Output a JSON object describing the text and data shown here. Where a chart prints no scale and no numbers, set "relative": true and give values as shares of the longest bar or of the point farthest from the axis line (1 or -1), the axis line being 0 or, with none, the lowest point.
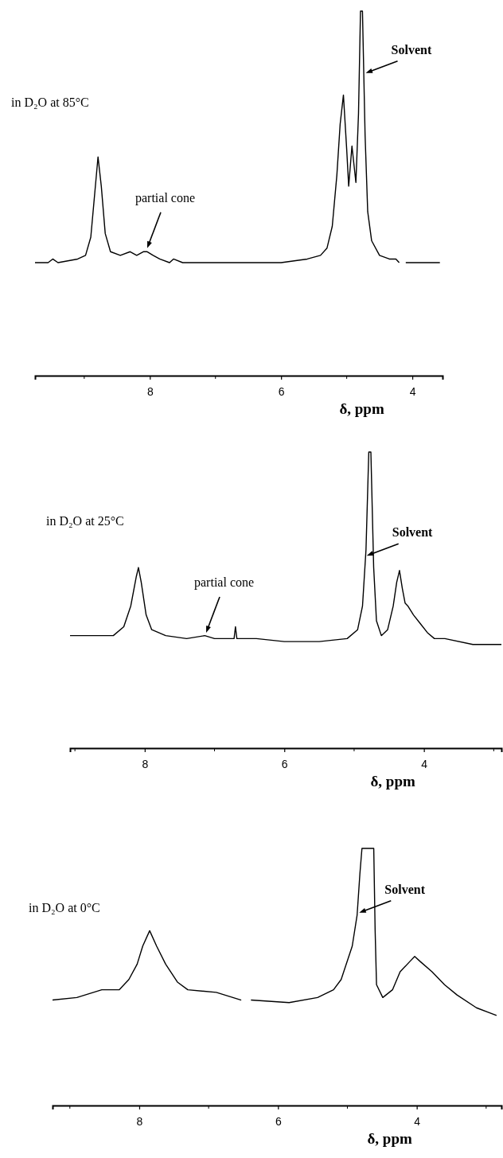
{
  "chart_data": [
    {
      "type": "line",
      "title": "in D₂O at 85°C",
      "xlabel": "δ, ppm",
      "relative": true,
      "xlim": [
        9.75,
        3.54
      ],
      "xticks": [
        8,
        6,
        4
      ],
      "line_style": "solid",
      "series": [
        {
          "color": "#000000",
          "x": [
            9.75,
            9.55,
            9.48,
            9.4,
            9.1,
            8.98,
            8.9,
            8.84,
            8.79,
            8.74,
            8.68,
            8.6,
            8.45,
            8.3,
            8.2,
            8.1,
            8.04,
            7.95,
            7.85,
            7.7,
            7.64,
            7.5,
            7.0,
            6.5,
            6.0,
            5.6,
            5.4,
            5.3,
            5.22,
            5.15,
            5.1,
            5.05,
            5.0,
            4.97,
            4.92,
            4.86,
            4.82,
            4.79,
            4.76,
            4.72,
            4.68,
            4.62,
            4.5,
            4.35,
            4.25,
            4.2,
            4.15,
            4.1,
            3.9,
            3.58
          ],
          "values": [
            0.31,
            0.31,
            0.32,
            0.31,
            0.32,
            0.33,
            0.38,
            0.5,
            0.6,
            0.52,
            0.39,
            0.34,
            0.33,
            0.34,
            0.33,
            0.34,
            0.34,
            0.33,
            0.32,
            0.31,
            0.32,
            0.31,
            0.31,
            0.31,
            0.31,
            0.32,
            0.33,
            0.35,
            0.41,
            0.55,
            0.69,
            0.77,
            0.62,
            0.52,
            0.63,
            0.53,
            0.72,
            1,
            1,
            0.66,
            0.45,
            0.37,
            0.33,
            0.32,
            0.32,
            0.31,
            null,
            0.31,
            0.31,
            0.31
          ]
        }
      ],
      "annotations": [
        {
          "text": "partial cone",
          "x": 8.04,
          "y": 0.35
        },
        {
          "text": "Solvent",
          "x": 4.71,
          "y": 0.83
        }
      ]
    },
    {
      "type": "line",
      "title": "in D₂O at 25°C",
      "xlabel": "δ, ppm",
      "relative": true,
      "xlim": [
        9.07,
        2.89
      ],
      "xticks": [
        8,
        6,
        4
      ],
      "line_style": "solid",
      "series": [
        {
          "color": "#000000",
          "x": [
            9.07,
            8.7,
            8.45,
            8.3,
            8.2,
            8.12,
            8.09,
            8.05,
            7.98,
            7.9,
            7.7,
            7.4,
            7.14,
            7.0,
            6.72,
            6.7,
            6.68,
            6.4,
            6.0,
            5.5,
            5.1,
            4.95,
            4.88,
            4.83,
            4.79,
            4.76,
            4.72,
            4.68,
            4.61,
            4.52,
            4.44,
            4.39,
            4.35,
            4.31,
            4.27,
            4.23,
            4.15,
            4.05,
            3.95,
            3.85,
            3.7,
            3.3,
            2.89
          ],
          "values": [
            0.38,
            0.38,
            0.38,
            0.41,
            0.48,
            0.58,
            0.61,
            0.56,
            0.45,
            0.4,
            0.38,
            0.37,
            0.38,
            0.37,
            0.37,
            0.41,
            0.37,
            0.37,
            0.36,
            0.36,
            0.37,
            0.4,
            0.48,
            0.67,
            1,
            1,
            0.61,
            0.43,
            0.38,
            0.4,
            0.48,
            0.56,
            0.6,
            0.54,
            0.49,
            0.48,
            0.45,
            0.42,
            0.39,
            0.37,
            0.37,
            0.35,
            0.35
          ]
        }
      ],
      "annotations": [
        {
          "text": "partial cone",
          "x": 7.12,
          "y": 0.39
        },
        {
          "text": "Solvent",
          "x": 4.82,
          "y": 0.65
        }
      ]
    },
    {
      "type": "line",
      "title": "in D₂O at 0°C",
      "xlabel": "δ, ppm",
      "relative": true,
      "xlim": [
        9.25,
        2.78
      ],
      "xticks": [
        8,
        6,
        4
      ],
      "line_style": "solid",
      "series": [
        {
          "color": "#000000",
          "x": [
            9.25,
            8.9,
            8.54,
            8.29,
            8.15,
            8.03,
            7.95,
            7.85,
            7.75,
            7.62,
            7.45,
            7.3,
            6.89,
            6.53,
            6.47,
            6.39,
            5.84,
            5.43,
            5.2,
            5.09,
            4.93,
            4.86,
            4.82,
            4.79,
            4.62,
            4.6,
            4.58,
            4.49,
            4.35,
            4.24,
            4.1,
            4.03,
            3.95,
            3.78,
            3.6,
            3.42,
            3.14,
            2.85
          ],
          "values": [
            0.41,
            0.42,
            0.45,
            0.45,
            0.49,
            0.55,
            0.62,
            0.68,
            0.62,
            0.55,
            0.48,
            0.45,
            0.44,
            0.41,
            null,
            0.41,
            0.4,
            0.42,
            0.45,
            0.49,
            0.62,
            0.74,
            0.9,
            1,
            1,
            0.68,
            0.47,
            0.42,
            0.45,
            0.52,
            0.56,
            0.58,
            0.56,
            0.52,
            0.47,
            0.43,
            0.38,
            0.35
          ]
        }
      ],
      "annotations": [
        {
          "text": "Solvent",
          "x": 4.83,
          "y": 0.75
        }
      ]
    }
  ]
}
